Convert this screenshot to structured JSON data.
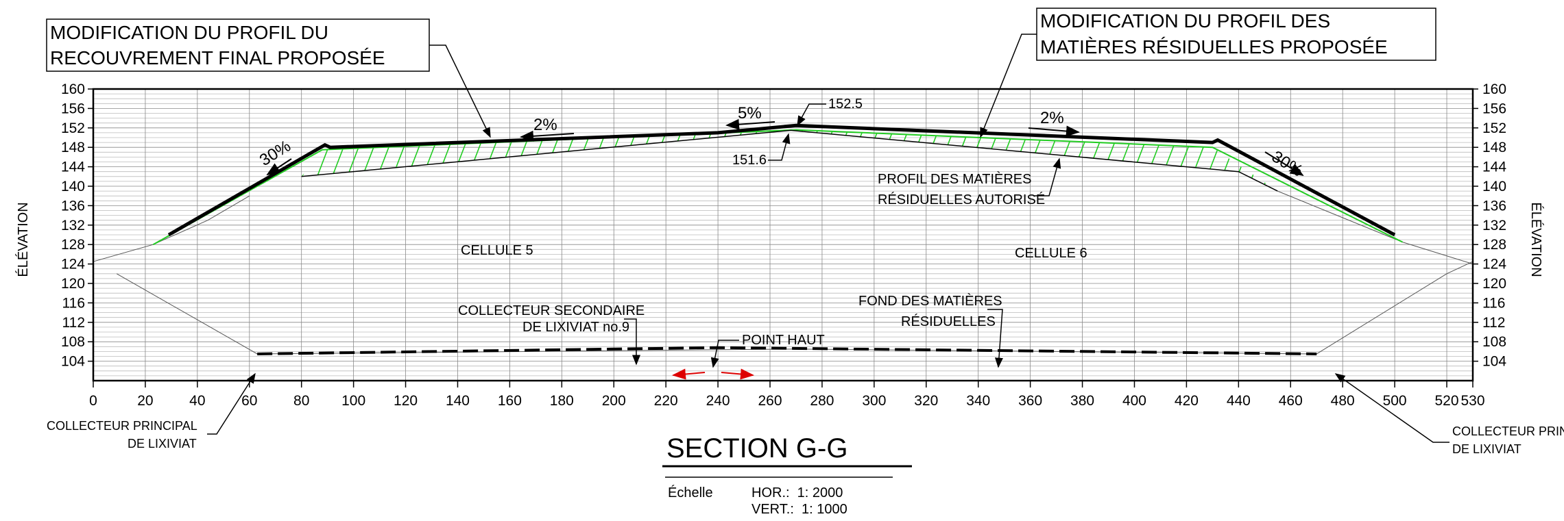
{
  "callouts": {
    "final_cover": [
      "MODIFICATION DU PROFIL DU",
      "RECOUVREMENT FINAL PROPOSÉE"
    ],
    "waste_profile": [
      "MODIFICATION DU PROFIL DES",
      "MATIÈRES RÉSIDUELLES PROPOSÉE"
    ],
    "authorized_profile": [
      "PROFIL DES MATIÈRES",
      "RÉSIDUELLES AUTORISÉ"
    ],
    "secondary_collector": [
      "COLLECTEUR SECONDAIRE",
      "DE LIXIVIAT no.9"
    ],
    "waste_bottom": [
      "FOND DES MATIÈRES",
      "RÉSIDUELLES"
    ],
    "high_point": "POINT HAUT",
    "main_collector_left": [
      "COLLECTEUR PRINCIPAL",
      "DE LIXIVIAT"
    ],
    "main_collector_right": [
      "COLLECTEUR PRINC",
      "DE LIXIVIAT"
    ]
  },
  "cells": {
    "left": "CELLULE 5",
    "right": "CELLULE 6"
  },
  "slopes": {
    "left_side": "30%",
    "left_top": "2%",
    "center": "5%",
    "right_top": "2%",
    "right_side": "30%"
  },
  "elevations": {
    "peak": "152.5",
    "waste_peak": "151.6"
  },
  "axes": {
    "y_label": "ÉLÉVATION",
    "y_ticks": [
      "104",
      "108",
      "112",
      "116",
      "120",
      "124",
      "128",
      "132",
      "136",
      "140",
      "144",
      "148",
      "152",
      "156",
      "160"
    ],
    "x_ticks": [
      "0",
      "20",
      "40",
      "60",
      "80",
      "100",
      "120",
      "140",
      "160",
      "180",
      "200",
      "220",
      "240",
      "260",
      "280",
      "300",
      "320",
      "340",
      "360",
      "380",
      "400",
      "420",
      "440",
      "460",
      "480",
      "500",
      "520",
      "530"
    ]
  },
  "title": "SECTION G-G",
  "scale": {
    "label": "Échelle",
    "hor": "HOR.:  1: 2000",
    "vert": "VERT.:  1: 1000"
  },
  "colors": {
    "hatch": "#22cc22",
    "arrow": "#dd0000",
    "line": "#000000"
  },
  "profiles": {
    "proposed_cover": [
      [
        29,
        130
      ],
      [
        89,
        148.5
      ],
      [
        91,
        148
      ],
      [
        240,
        151
      ],
      [
        270,
        152.5
      ],
      [
        430,
        149
      ],
      [
        432,
        149.5
      ],
      [
        500,
        130
      ]
    ],
    "proposed_waste": [
      [
        23,
        128
      ],
      [
        88,
        147.5
      ],
      [
        270,
        151.6
      ],
      [
        430,
        148
      ],
      [
        503,
        128.5
      ]
    ],
    "authorized_waste": [
      [
        80,
        142
      ],
      [
        268,
        151.5
      ],
      [
        440,
        143
      ],
      [
        455,
        139
      ]
    ],
    "cell_boundary": [
      [
        0,
        124.5
      ],
      [
        23,
        128
      ],
      [
        44,
        133
      ],
      [
        60,
        138
      ]
    ],
    "cell_boundary_right": [
      [
        455,
        139
      ],
      [
        503,
        128.5
      ],
      [
        530,
        124
      ]
    ],
    "cell_bottom": [
      [
        9,
        122
      ],
      [
        63,
        105.5
      ],
      [
        270,
        106.5
      ],
      [
        470,
        105.5
      ],
      [
        520,
        122
      ],
      [
        530,
        124.5
      ]
    ],
    "collector": [
      [
        63,
        105.5
      ],
      [
        240,
        106.8
      ],
      [
        470,
        105.5
      ]
    ]
  }
}
